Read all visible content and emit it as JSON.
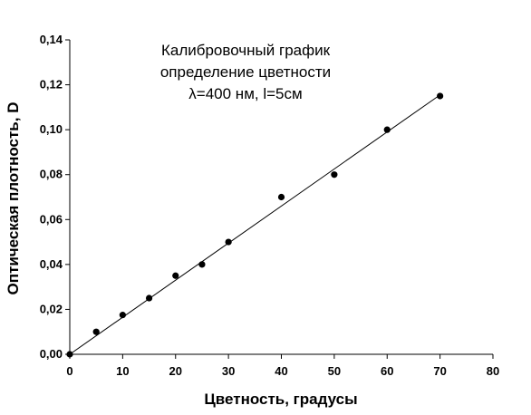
{
  "chart_data": {
    "type": "scatter",
    "title_lines": [
      "Калибровочный график",
      "определение цветности",
      "λ=400 нм, l=5см"
    ],
    "xlabel": "Цветность, градусы",
    "ylabel": "Оптическая плотность, D",
    "xlim": [
      0,
      80
    ],
    "ylim": [
      0,
      0.14
    ],
    "x_ticks": [
      "0",
      "10",
      "20",
      "30",
      "40",
      "50",
      "60",
      "70",
      "80"
    ],
    "y_ticks": [
      "0,00",
      "0,02",
      "0,04",
      "0,06",
      "0,08",
      "0,10",
      "0,12",
      "0,14"
    ],
    "series": [
      {
        "points": [
          {
            "x": 0,
            "y": 0.0
          },
          {
            "x": 5,
            "y": 0.01
          },
          {
            "x": 10,
            "y": 0.0175
          },
          {
            "x": 15,
            "y": 0.025
          },
          {
            "x": 20,
            "y": 0.035
          },
          {
            "x": 25,
            "y": 0.04
          },
          {
            "x": 30,
            "y": 0.05
          },
          {
            "x": 40,
            "y": 0.07
          },
          {
            "x": 50,
            "y": 0.08
          },
          {
            "x": 60,
            "y": 0.1
          },
          {
            "x": 70,
            "y": 0.115
          }
        ]
      }
    ],
    "trendline": {
      "type": "linear",
      "x": [
        0,
        70
      ],
      "y": [
        0.0,
        0.1155
      ]
    },
    "grid": false,
    "marker_color": "#000000",
    "line_color": "#000000"
  }
}
